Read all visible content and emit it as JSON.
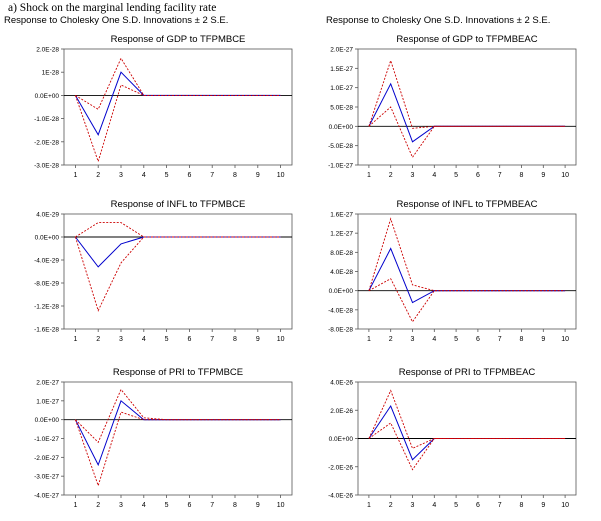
{
  "caption": "a) Shock on the marginal lending facility rate",
  "column_headers": [
    "Response to Cholesky One S.D. Innovations ± 2 S.E.",
    "Response to Cholesky One S.D. Innovations ± 2 S.E."
  ],
  "colors": {
    "response": "#0000cc",
    "bands": "#cc0000",
    "zero": "#000000",
    "frame": "#555555"
  },
  "chart_data": [
    {
      "type": "line",
      "title": "Response of GDP to TFPMBCE",
      "x": [
        1,
        2,
        3,
        4,
        5,
        6,
        7,
        8,
        9,
        10
      ],
      "ylim": [
        -3e-28,
        2e-28
      ],
      "yticks": [
        "2.0E-28",
        "1E-28",
        "0.0E+00",
        "-1.0E-28",
        "-2.0E-28",
        "-3.0E-28"
      ],
      "series": [
        {
          "role": "response",
          "values": [
            0,
            -1.7e-28,
            1e-28,
            0,
            0,
            0,
            0,
            0,
            0,
            0
          ]
        },
        {
          "role": "upper",
          "values": [
            0,
            -6e-29,
            1.6e-28,
            0,
            0,
            0,
            0,
            0,
            0,
            0
          ]
        },
        {
          "role": "lower",
          "values": [
            0,
            -2.85e-28,
            4.5e-29,
            0,
            0,
            0,
            0,
            0,
            0,
            0
          ]
        }
      ]
    },
    {
      "type": "line",
      "title": "Response of GDP to TFPMBEAC",
      "x": [
        1,
        2,
        3,
        4,
        5,
        6,
        7,
        8,
        9,
        10
      ],
      "ylim": [
        -1e-27,
        2e-27
      ],
      "yticks": [
        "2.0E-27",
        "1.5E-27",
        "1.0E-27",
        "5.0E-28",
        "0.0E+00",
        "-5.0E-28",
        "-1.0E-27"
      ],
      "series": [
        {
          "role": "response",
          "values": [
            0,
            1.1e-27,
            -4e-28,
            0,
            0,
            0,
            0,
            0,
            0,
            0
          ]
        },
        {
          "role": "upper",
          "values": [
            0,
            1.7e-27,
            -5e-29,
            0,
            0,
            0,
            0,
            0,
            0,
            0
          ]
        },
        {
          "role": "lower",
          "values": [
            0,
            5e-28,
            -8e-28,
            0,
            0,
            0,
            0,
            0,
            0,
            0
          ]
        }
      ]
    },
    {
      "type": "line",
      "title": "Response of INFL to TFPMBCE",
      "x": [
        1,
        2,
        3,
        4,
        5,
        6,
        7,
        8,
        9,
        10
      ],
      "ylim": [
        -1.6e-28,
        4e-29
      ],
      "yticks": [
        "4.0E-29",
        "0.0E+00",
        "-4.0E-29",
        "-8.0E-29",
        "-1.2E-28",
        "-1.6E-28"
      ],
      "series": [
        {
          "role": "response",
          "values": [
            0,
            -5.2e-29,
            -1.2e-29,
            0,
            0,
            0,
            0,
            0,
            0,
            0
          ]
        },
        {
          "role": "upper",
          "values": [
            0,
            2.5e-29,
            2.5e-29,
            0,
            0,
            0,
            0,
            0,
            0,
            0
          ]
        },
        {
          "role": "lower",
          "values": [
            0,
            -1.28e-28,
            -4.5e-29,
            0,
            0,
            0,
            0,
            0,
            0,
            0
          ]
        }
      ]
    },
    {
      "type": "line",
      "title": "Response of INFL to TFPMBEAC",
      "x": [
        1,
        2,
        3,
        4,
        5,
        6,
        7,
        8,
        9,
        10
      ],
      "ylim": [
        -8e-28,
        1.6e-27
      ],
      "yticks": [
        "1.6E-27",
        "1.2E-27",
        "8.0E-28",
        "4.0E-28",
        "0.0E+00",
        "-4.0E-28",
        "-8.0E-28"
      ],
      "series": [
        {
          "role": "response",
          "values": [
            0,
            8.8e-28,
            -2.5e-28,
            0,
            0,
            0,
            0,
            0,
            0,
            0
          ]
        },
        {
          "role": "upper",
          "values": [
            0,
            1.5e-27,
            1.2e-28,
            0,
            0,
            0,
            0,
            0,
            0,
            0
          ]
        },
        {
          "role": "lower",
          "values": [
            0,
            2.5e-28,
            -6.5e-28,
            0,
            0,
            0,
            0,
            0,
            0,
            0
          ]
        }
      ]
    },
    {
      "type": "line",
      "title": "Response of PRI to TFPMBCE",
      "x": [
        1,
        2,
        3,
        4,
        5,
        6,
        7,
        8,
        9,
        10
      ],
      "ylim": [
        -4e-27,
        2e-27
      ],
      "yticks": [
        "2.0E-27",
        "1.0E-27",
        "0.0E+00",
        "-1.0E-27",
        "-2.0E-27",
        "-3.0E-27",
        "-4.0E-27"
      ],
      "series": [
        {
          "role": "response",
          "values": [
            0,
            -2.4e-27,
            1e-27,
            0,
            0,
            0,
            0,
            0,
            0,
            0
          ]
        },
        {
          "role": "upper",
          "values": [
            0,
            -1.2e-27,
            1.6e-27,
            1e-28,
            0,
            0,
            0,
            0,
            0,
            0
          ]
        },
        {
          "role": "lower",
          "values": [
            0,
            -3.5e-27,
            4e-28,
            0,
            0,
            0,
            0,
            0,
            0,
            0
          ]
        }
      ]
    },
    {
      "type": "line",
      "title": "Response of PRI to TFPMBEAC",
      "x": [
        1,
        2,
        3,
        4,
        5,
        6,
        7,
        8,
        9,
        10
      ],
      "ylim": [
        -4e-26,
        4e-26
      ],
      "yticks": [
        "4.0E-26",
        "2.0E-26",
        "0.0E+00",
        "-2.0E-26",
        "-4.0E-26"
      ],
      "series": [
        {
          "role": "response",
          "values": [
            0,
            2.3e-26,
            -1.5e-26,
            0,
            0,
            0,
            0,
            0,
            0,
            0
          ]
        },
        {
          "role": "upper",
          "values": [
            0,
            3.4e-26,
            -7e-27,
            0,
            0,
            0,
            0,
            0,
            0,
            0
          ]
        },
        {
          "role": "lower",
          "values": [
            0,
            1.1e-26,
            -2.2e-26,
            0,
            0,
            0,
            0,
            0,
            0,
            0
          ]
        }
      ]
    }
  ]
}
